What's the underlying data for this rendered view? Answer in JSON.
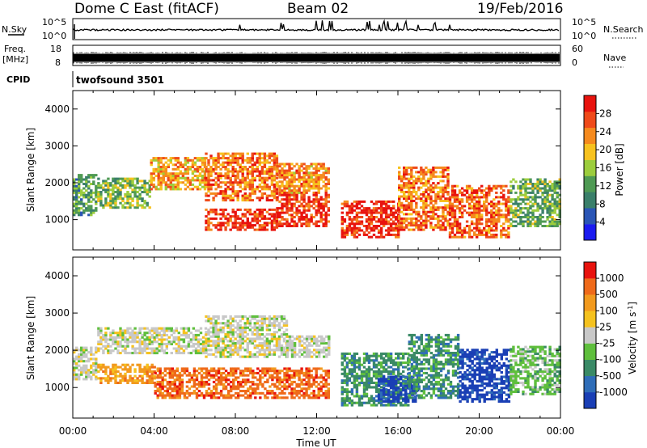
{
  "header": {
    "station": "Dome C East (fitACF)",
    "beam": "Beam 02",
    "date": "19/Feb/2016"
  },
  "summary": {
    "nsky_label": "N.Sky",
    "nsearch_label": "N.Search",
    "freq_label": "Freq.",
    "freq_unit": "[MHz]",
    "nave_label": "Nave",
    "cpid_label": "CPID",
    "cpid_value": "twofsound 3501",
    "noise_ticks_left": [
      "10^5",
      "10^0"
    ],
    "noise_ticks_right": [
      "10^5",
      "10^0"
    ],
    "freq_ticks": [
      "18",
      "8"
    ],
    "nave_ticks": [
      "60",
      "0"
    ]
  },
  "chart_data": [
    {
      "type": "heatmap",
      "name": "power",
      "ylabel": "Slant Range [km]",
      "yticks": [
        "4000",
        "3000",
        "2000",
        "1000"
      ],
      "ylim": [
        180,
        4500
      ],
      "xlim": [
        0,
        24
      ],
      "colorbar": {
        "label": "Power [dB]",
        "ticks": [
          "28",
          "24",
          "20",
          "16",
          "12",
          "8",
          "4"
        ],
        "colors": [
          "#1b1bf0",
          "#2a55b5",
          "#3a7f6a",
          "#4f9a54",
          "#9ccd3d",
          "#f7c21f",
          "#f58a1e",
          "#ef4a1a",
          "#e8130e"
        ]
      },
      "echo_bands": [
        {
          "t0": 0.0,
          "t1": 1.2,
          "r0": 1100,
          "r1": 2200,
          "level": 0.35
        },
        {
          "t0": 1.2,
          "t1": 3.8,
          "r0": 1300,
          "r1": 2100,
          "level": 0.45
        },
        {
          "t0": 3.8,
          "t1": 6.5,
          "r0": 1800,
          "r1": 2700,
          "level": 0.7
        },
        {
          "t0": 6.5,
          "t1": 10.0,
          "r0": 1500,
          "r1": 2800,
          "level": 0.8
        },
        {
          "t0": 10.0,
          "t1": 12.6,
          "r0": 1700,
          "r1": 2500,
          "level": 0.75
        },
        {
          "t0": 6.5,
          "t1": 10.0,
          "r0": 700,
          "r1": 1300,
          "level": 0.95
        },
        {
          "t0": 10.0,
          "t1": 12.6,
          "r0": 800,
          "r1": 1700,
          "level": 0.95
        },
        {
          "t0": 13.2,
          "t1": 16.0,
          "r0": 500,
          "r1": 1500,
          "level": 0.98
        },
        {
          "t0": 16.0,
          "t1": 18.5,
          "r0": 700,
          "r1": 2400,
          "level": 0.8
        },
        {
          "t0": 18.5,
          "t1": 21.5,
          "r0": 500,
          "r1": 1900,
          "level": 0.85
        },
        {
          "t0": 21.5,
          "t1": 24.0,
          "r0": 800,
          "r1": 2100,
          "level": 0.4
        }
      ]
    },
    {
      "type": "heatmap",
      "name": "velocity",
      "ylabel": "Slant Range [km]",
      "yticks": [
        "4000",
        "3000",
        "2000",
        "1000"
      ],
      "ylim": [
        180,
        4500
      ],
      "xlim": [
        0,
        24
      ],
      "colorbar": {
        "label": "Velocity [m s^-1]",
        "ticks": [
          "1000",
          "500",
          "100",
          "25",
          "-25",
          "-100",
          "-500",
          "-1000"
        ],
        "colors": [
          "#1a3fb5",
          "#2f6db8",
          "#3a8a66",
          "#5fbf3d",
          "#c8c8c8",
          "#f5c21f",
          "#f29a1e",
          "#ef6a1a",
          "#e8130e"
        ]
      },
      "echo_bands": [
        {
          "t0": 0.0,
          "t1": 1.2,
          "r0": 1200,
          "r1": 2100,
          "level": 4
        },
        {
          "t0": 1.2,
          "t1": 6.5,
          "r0": 1900,
          "r1": 2600,
          "level": 4
        },
        {
          "t0": 6.5,
          "t1": 10.5,
          "r0": 1800,
          "r1": 2900,
          "level": 4
        },
        {
          "t0": 10.5,
          "t1": 12.6,
          "r0": 1800,
          "r1": 2400,
          "level": 4
        },
        {
          "t0": 1.2,
          "t1": 4.0,
          "r0": 1100,
          "r1": 1600,
          "level": 6
        },
        {
          "t0": 4.0,
          "t1": 12.6,
          "r0": 700,
          "r1": 1500,
          "level": 7
        },
        {
          "t0": 13.2,
          "t1": 16.5,
          "r0": 500,
          "r1": 1900,
          "level": 2
        },
        {
          "t0": 15.0,
          "t1": 17.0,
          "r0": 600,
          "r1": 1300,
          "level": 0
        },
        {
          "t0": 16.5,
          "t1": 19.0,
          "r0": 700,
          "r1": 2400,
          "level": 2
        },
        {
          "t0": 19.0,
          "t1": 21.5,
          "r0": 600,
          "r1": 2000,
          "level": 0
        },
        {
          "t0": 21.5,
          "t1": 24.0,
          "r0": 800,
          "r1": 2100,
          "level": 3
        }
      ]
    }
  ],
  "xaxis": {
    "ticks": [
      "00:00",
      "04:00",
      "08:00",
      "12:00",
      "16:00",
      "20:00",
      "00:00"
    ],
    "label": "Time UT"
  }
}
